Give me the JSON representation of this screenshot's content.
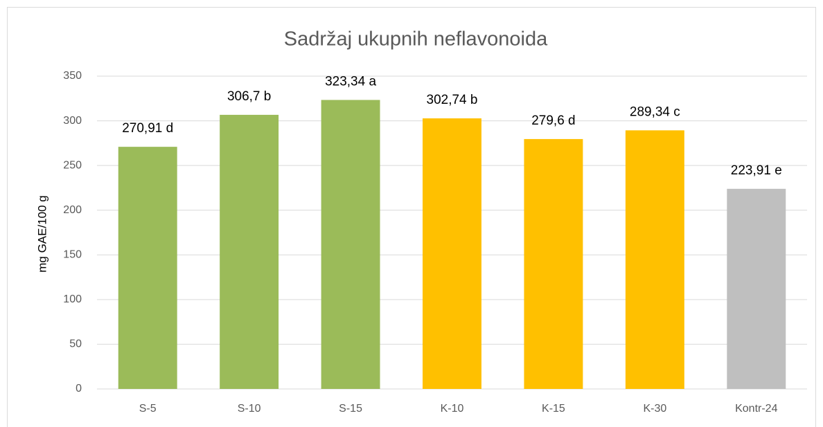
{
  "chart_data": {
    "type": "bar",
    "title": "Sadržaj ukupnih neflavonoida",
    "y_label": "mg GAE/100 g",
    "categories": [
      "S-5",
      "S-10",
      "S-15",
      "K-10",
      "K-15",
      "K-30",
      "Kontr-24"
    ],
    "values": [
      270.91,
      306.7,
      323.34,
      302.74,
      279.6,
      289.34,
      223.91
    ],
    "value_labels": [
      "270,91 d",
      "306,7 b",
      "323,34 a",
      "302,74 b",
      "279,6 d",
      "289,34 c",
      "223,91 e"
    ],
    "colors": [
      "#9bbb59",
      "#9bbb59",
      "#9bbb59",
      "#ffc000",
      "#ffc000",
      "#ffc000",
      "#bfbfbf"
    ],
    "ylim": [
      0,
      350
    ],
    "yticks": [
      0,
      50,
      100,
      150,
      200,
      250,
      300,
      350
    ],
    "grid": true
  }
}
